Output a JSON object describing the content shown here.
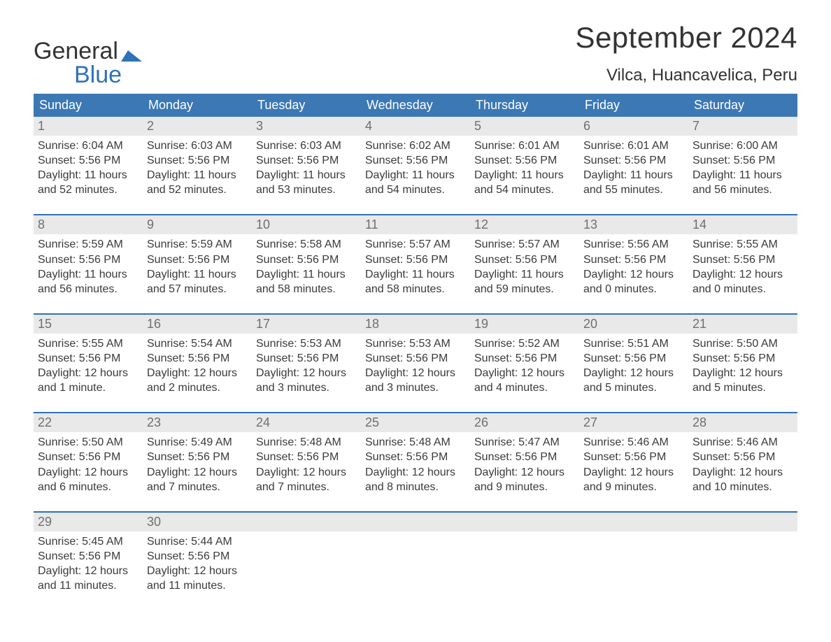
{
  "brand": {
    "word1": "General",
    "word2": "Blue",
    "logo_color": "#2f72b8"
  },
  "title": "September 2024",
  "location": "Vilca, Huancavelica, Peru",
  "colors": {
    "header_bg": "#3c78b4",
    "header_text": "#ffffff",
    "rule": "#2f72b8",
    "daynum_bg": "#e9e9e9",
    "daynum_text": "#6f6f6f",
    "body_text": "#3a3a3a",
    "page_bg": "#ffffff"
  },
  "typography": {
    "title_fontsize": 42,
    "location_fontsize": 24,
    "dow_fontsize": 18,
    "daynum_fontsize": 18,
    "cell_fontsize": 16,
    "logo_fontsize": 34
  },
  "days_of_week": [
    "Sunday",
    "Monday",
    "Tuesday",
    "Wednesday",
    "Thursday",
    "Friday",
    "Saturday"
  ],
  "weeks": [
    [
      {
        "n": "1",
        "sunrise": "Sunrise: 6:04 AM",
        "sunset": "Sunset: 5:56 PM",
        "d1": "Daylight: 11 hours",
        "d2": "and 52 minutes."
      },
      {
        "n": "2",
        "sunrise": "Sunrise: 6:03 AM",
        "sunset": "Sunset: 5:56 PM",
        "d1": "Daylight: 11 hours",
        "d2": "and 52 minutes."
      },
      {
        "n": "3",
        "sunrise": "Sunrise: 6:03 AM",
        "sunset": "Sunset: 5:56 PM",
        "d1": "Daylight: 11 hours",
        "d2": "and 53 minutes."
      },
      {
        "n": "4",
        "sunrise": "Sunrise: 6:02 AM",
        "sunset": "Sunset: 5:56 PM",
        "d1": "Daylight: 11 hours",
        "d2": "and 54 minutes."
      },
      {
        "n": "5",
        "sunrise": "Sunrise: 6:01 AM",
        "sunset": "Sunset: 5:56 PM",
        "d1": "Daylight: 11 hours",
        "d2": "and 54 minutes."
      },
      {
        "n": "6",
        "sunrise": "Sunrise: 6:01 AM",
        "sunset": "Sunset: 5:56 PM",
        "d1": "Daylight: 11 hours",
        "d2": "and 55 minutes."
      },
      {
        "n": "7",
        "sunrise": "Sunrise: 6:00 AM",
        "sunset": "Sunset: 5:56 PM",
        "d1": "Daylight: 11 hours",
        "d2": "and 56 minutes."
      }
    ],
    [
      {
        "n": "8",
        "sunrise": "Sunrise: 5:59 AM",
        "sunset": "Sunset: 5:56 PM",
        "d1": "Daylight: 11 hours",
        "d2": "and 56 minutes."
      },
      {
        "n": "9",
        "sunrise": "Sunrise: 5:59 AM",
        "sunset": "Sunset: 5:56 PM",
        "d1": "Daylight: 11 hours",
        "d2": "and 57 minutes."
      },
      {
        "n": "10",
        "sunrise": "Sunrise: 5:58 AM",
        "sunset": "Sunset: 5:56 PM",
        "d1": "Daylight: 11 hours",
        "d2": "and 58 minutes."
      },
      {
        "n": "11",
        "sunrise": "Sunrise: 5:57 AM",
        "sunset": "Sunset: 5:56 PM",
        "d1": "Daylight: 11 hours",
        "d2": "and 58 minutes."
      },
      {
        "n": "12",
        "sunrise": "Sunrise: 5:57 AM",
        "sunset": "Sunset: 5:56 PM",
        "d1": "Daylight: 11 hours",
        "d2": "and 59 minutes."
      },
      {
        "n": "13",
        "sunrise": "Sunrise: 5:56 AM",
        "sunset": "Sunset: 5:56 PM",
        "d1": "Daylight: 12 hours",
        "d2": "and 0 minutes."
      },
      {
        "n": "14",
        "sunrise": "Sunrise: 5:55 AM",
        "sunset": "Sunset: 5:56 PM",
        "d1": "Daylight: 12 hours",
        "d2": "and 0 minutes."
      }
    ],
    [
      {
        "n": "15",
        "sunrise": "Sunrise: 5:55 AM",
        "sunset": "Sunset: 5:56 PM",
        "d1": "Daylight: 12 hours",
        "d2": "and 1 minute."
      },
      {
        "n": "16",
        "sunrise": "Sunrise: 5:54 AM",
        "sunset": "Sunset: 5:56 PM",
        "d1": "Daylight: 12 hours",
        "d2": "and 2 minutes."
      },
      {
        "n": "17",
        "sunrise": "Sunrise: 5:53 AM",
        "sunset": "Sunset: 5:56 PM",
        "d1": "Daylight: 12 hours",
        "d2": "and 3 minutes."
      },
      {
        "n": "18",
        "sunrise": "Sunrise: 5:53 AM",
        "sunset": "Sunset: 5:56 PM",
        "d1": "Daylight: 12 hours",
        "d2": "and 3 minutes."
      },
      {
        "n": "19",
        "sunrise": "Sunrise: 5:52 AM",
        "sunset": "Sunset: 5:56 PM",
        "d1": "Daylight: 12 hours",
        "d2": "and 4 minutes."
      },
      {
        "n": "20",
        "sunrise": "Sunrise: 5:51 AM",
        "sunset": "Sunset: 5:56 PM",
        "d1": "Daylight: 12 hours",
        "d2": "and 5 minutes."
      },
      {
        "n": "21",
        "sunrise": "Sunrise: 5:50 AM",
        "sunset": "Sunset: 5:56 PM",
        "d1": "Daylight: 12 hours",
        "d2": "and 5 minutes."
      }
    ],
    [
      {
        "n": "22",
        "sunrise": "Sunrise: 5:50 AM",
        "sunset": "Sunset: 5:56 PM",
        "d1": "Daylight: 12 hours",
        "d2": "and 6 minutes."
      },
      {
        "n": "23",
        "sunrise": "Sunrise: 5:49 AM",
        "sunset": "Sunset: 5:56 PM",
        "d1": "Daylight: 12 hours",
        "d2": "and 7 minutes."
      },
      {
        "n": "24",
        "sunrise": "Sunrise: 5:48 AM",
        "sunset": "Sunset: 5:56 PM",
        "d1": "Daylight: 12 hours",
        "d2": "and 7 minutes."
      },
      {
        "n": "25",
        "sunrise": "Sunrise: 5:48 AM",
        "sunset": "Sunset: 5:56 PM",
        "d1": "Daylight: 12 hours",
        "d2": "and 8 minutes."
      },
      {
        "n": "26",
        "sunrise": "Sunrise: 5:47 AM",
        "sunset": "Sunset: 5:56 PM",
        "d1": "Daylight: 12 hours",
        "d2": "and 9 minutes."
      },
      {
        "n": "27",
        "sunrise": "Sunrise: 5:46 AM",
        "sunset": "Sunset: 5:56 PM",
        "d1": "Daylight: 12 hours",
        "d2": "and 9 minutes."
      },
      {
        "n": "28",
        "sunrise": "Sunrise: 5:46 AM",
        "sunset": "Sunset: 5:56 PM",
        "d1": "Daylight: 12 hours",
        "d2": "and 10 minutes."
      }
    ],
    [
      {
        "n": "29",
        "sunrise": "Sunrise: 5:45 AM",
        "sunset": "Sunset: 5:56 PM",
        "d1": "Daylight: 12 hours",
        "d2": "and 11 minutes."
      },
      {
        "n": "30",
        "sunrise": "Sunrise: 5:44 AM",
        "sunset": "Sunset: 5:56 PM",
        "d1": "Daylight: 12 hours",
        "d2": "and 11 minutes."
      },
      {
        "n": "",
        "sunrise": "",
        "sunset": "",
        "d1": "",
        "d2": ""
      },
      {
        "n": "",
        "sunrise": "",
        "sunset": "",
        "d1": "",
        "d2": ""
      },
      {
        "n": "",
        "sunrise": "",
        "sunset": "",
        "d1": "",
        "d2": ""
      },
      {
        "n": "",
        "sunrise": "",
        "sunset": "",
        "d1": "",
        "d2": ""
      },
      {
        "n": "",
        "sunrise": "",
        "sunset": "",
        "d1": "",
        "d2": ""
      }
    ]
  ]
}
